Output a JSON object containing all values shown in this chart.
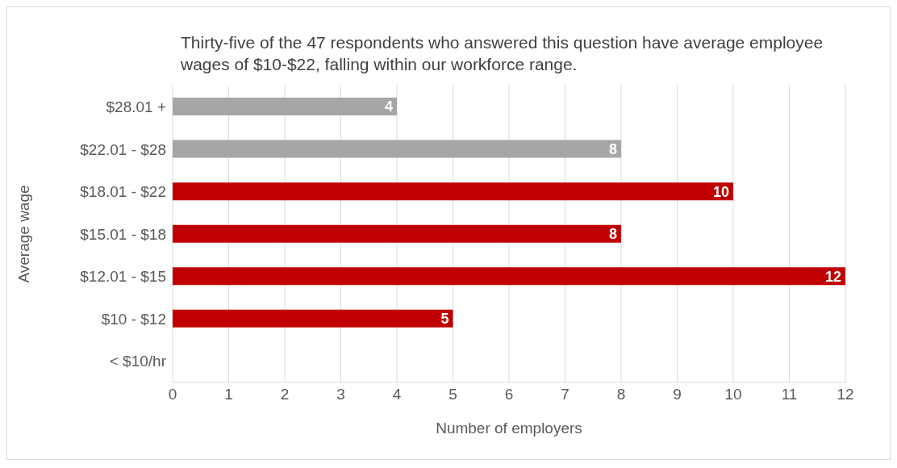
{
  "chart_data": {
    "type": "bar",
    "orientation": "horizontal",
    "title": "Thirty-five  of the 47 respondents who answered this question have average employee wages of $10-$22, falling within our workforce range.",
    "xlabel": "Number of employers",
    "ylabel": "Average wage",
    "categories": [
      "$28.01 +",
      "$22.01 - $28",
      "$18.01 - $22",
      "$15.01 - $18",
      "$12.01 - $15",
      "$10 - $12",
      "< $10/hr"
    ],
    "values": [
      4,
      8,
      10,
      8,
      12,
      5,
      0
    ],
    "colors": [
      "#a6a6a6",
      "#a6a6a6",
      "#c00000",
      "#c00000",
      "#c00000",
      "#c00000",
      "#c00000"
    ],
    "value_labels": [
      "4",
      "8",
      "10",
      "8",
      "12",
      "5",
      null
    ],
    "xlim": [
      0,
      12
    ],
    "xticks": [
      0,
      1,
      2,
      3,
      4,
      5,
      6,
      7,
      8,
      9,
      10,
      11,
      12
    ],
    "grid": "x",
    "legend": false
  }
}
